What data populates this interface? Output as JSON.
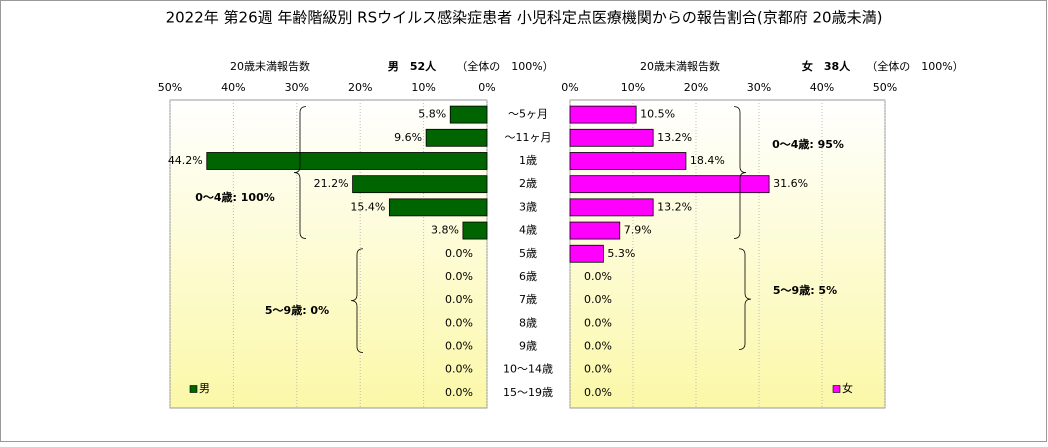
{
  "chart_data": {
    "type": "bar",
    "orientation": "horizontal",
    "title": "2022年 第26週 年齢階級別 RSウイルス感染症患者 小児科定点医療機関からの報告割合(京都府 20歳未満)",
    "categories": [
      "～5ヶ月",
      "～11ヶ月",
      "1歳",
      "2歳",
      "3歳",
      "4歳",
      "5歳",
      "6歳",
      "7歳",
      "8歳",
      "9歳",
      "10～14歳",
      "15～19歳"
    ],
    "series": [
      {
        "name": "男",
        "color": "#006400",
        "header": {
          "axis_label": "20歳未満報告数",
          "count": "男　52人",
          "share": "（全体の　100%）"
        },
        "values": [
          5.8,
          9.6,
          44.2,
          21.2,
          15.4,
          3.8,
          0,
          0,
          0,
          0,
          0,
          0,
          0
        ],
        "value_labels": [
          "5.8%",
          "9.6%",
          "44.2%",
          "21.2%",
          "15.4%",
          "3.8%",
          "0.0%",
          "0.0%",
          "0.0%",
          "0.0%",
          "0.0%",
          "0.0%",
          "0.0%"
        ],
        "annotations": [
          "0～4歳: 100%",
          "5～9歳: 0%"
        ]
      },
      {
        "name": "女",
        "color": "#ff00ff",
        "header": {
          "axis_label": "20歳未満報告数",
          "count": "女　38人",
          "share": "（全体の　100%）"
        },
        "values": [
          10.5,
          13.2,
          18.4,
          31.6,
          13.2,
          7.9,
          5.3,
          0,
          0,
          0,
          0,
          0,
          0
        ],
        "value_labels": [
          "10.5%",
          "13.2%",
          "18.4%",
          "31.6%",
          "13.2%",
          "7.9%",
          "5.3%",
          "0.0%",
          "0.0%",
          "0.0%",
          "0.0%",
          "0.0%",
          "0.0%"
        ],
        "annotations": [
          "0～4歳: 95%",
          "5～9歳: 5%"
        ]
      }
    ],
    "xlim": [
      0,
      50
    ],
    "xticks": [
      {
        "value": 0,
        "label": "0%"
      },
      {
        "value": 10,
        "label": "10%"
      },
      {
        "value": 20,
        "label": "20%"
      },
      {
        "value": 30,
        "label": "30%"
      },
      {
        "value": 40,
        "label": "40%"
      },
      {
        "value": 50,
        "label": "50%"
      }
    ],
    "grid": true
  }
}
